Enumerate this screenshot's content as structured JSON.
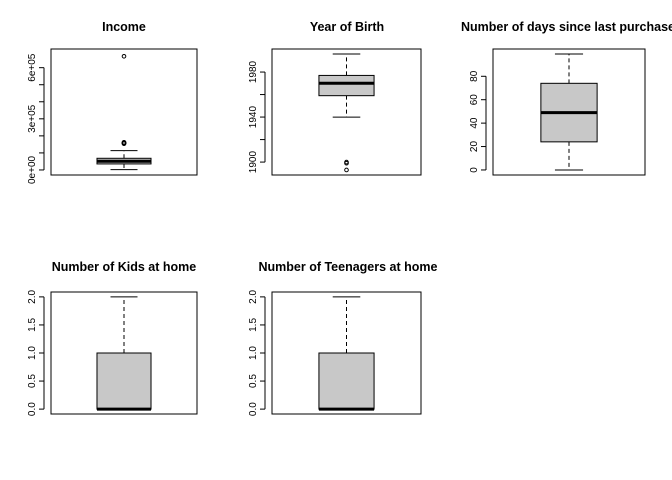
{
  "colors": {
    "box_fill": "#c8c8c8",
    "stroke": "#000000",
    "background": "#ffffff"
  },
  "chart_data": [
    {
      "type": "boxplot",
      "title": "Income",
      "ylim": [
        0,
        680000
      ],
      "ticks": [
        {
          "v": 0,
          "label": "0e+00"
        },
        {
          "v": 300000,
          "label": "3e+05"
        },
        {
          "v": 600000,
          "label": "6e+05"
        }
      ],
      "minor_ticks": [
        100000,
        200000,
        400000,
        500000
      ],
      "box": {
        "whisker_low": 1730,
        "q1": 35300,
        "median": 51400,
        "q3": 68500,
        "whisker_high": 113700
      },
      "outliers": [
        153900,
        156900,
        157100,
        157200,
        160800,
        162400,
        666700
      ],
      "grid": false,
      "legend": "none"
    },
    {
      "type": "boxplot",
      "title": "Year of Birth",
      "ylim": [
        1893,
        1996
      ],
      "ticks": [
        {
          "v": 1900,
          "label": "1900"
        },
        {
          "v": 1940,
          "label": "1940"
        },
        {
          "v": 1980,
          "label": "1980"
        }
      ],
      "minor_ticks": [
        1920,
        1960
      ],
      "box": {
        "whisker_low": 1940,
        "q1": 1959,
        "median": 1970,
        "q3": 1977,
        "whisker_high": 1996
      },
      "outliers": [
        1893,
        1899,
        1900
      ],
      "grid": false,
      "legend": "none"
    },
    {
      "type": "boxplot",
      "title": "Number of days since last purchase",
      "ylim": [
        0,
        99
      ],
      "ticks": [
        {
          "v": 0,
          "label": "0"
        },
        {
          "v": 20,
          "label": "20"
        },
        {
          "v": 40,
          "label": "40"
        },
        {
          "v": 60,
          "label": "60"
        },
        {
          "v": 80,
          "label": "80"
        }
      ],
      "minor_ticks": [],
      "box": {
        "whisker_low": 0,
        "q1": 24,
        "median": 49,
        "q3": 74,
        "whisker_high": 99
      },
      "outliers": [],
      "grid": false,
      "legend": "none"
    },
    {
      "type": "boxplot",
      "title": "Number of Kids at home",
      "ylim": [
        0,
        2
      ],
      "ticks": [
        {
          "v": 0,
          "label": "0.0"
        },
        {
          "v": 0.5,
          "label": "0.5"
        },
        {
          "v": 1,
          "label": "1.0"
        },
        {
          "v": 1.5,
          "label": "1.5"
        },
        {
          "v": 2,
          "label": "2.0"
        }
      ],
      "minor_ticks": [],
      "box": {
        "whisker_low": 0,
        "q1": 0,
        "median": 0,
        "q3": 1,
        "whisker_high": 2
      },
      "outliers": [],
      "grid": false,
      "legend": "none"
    },
    {
      "type": "boxplot",
      "title": "Number of Teenagers at home",
      "ylim": [
        0,
        2
      ],
      "ticks": [
        {
          "v": 0,
          "label": "0.0"
        },
        {
          "v": 0.5,
          "label": "0.5"
        },
        {
          "v": 1,
          "label": "1.0"
        },
        {
          "v": 1.5,
          "label": "1.5"
        },
        {
          "v": 2,
          "label": "2.0"
        }
      ],
      "minor_ticks": [],
      "box": {
        "whisker_low": 0,
        "q1": 0,
        "median": 0,
        "q3": 1,
        "whisker_high": 2
      },
      "outliers": [],
      "grid": false,
      "legend": "none"
    }
  ]
}
